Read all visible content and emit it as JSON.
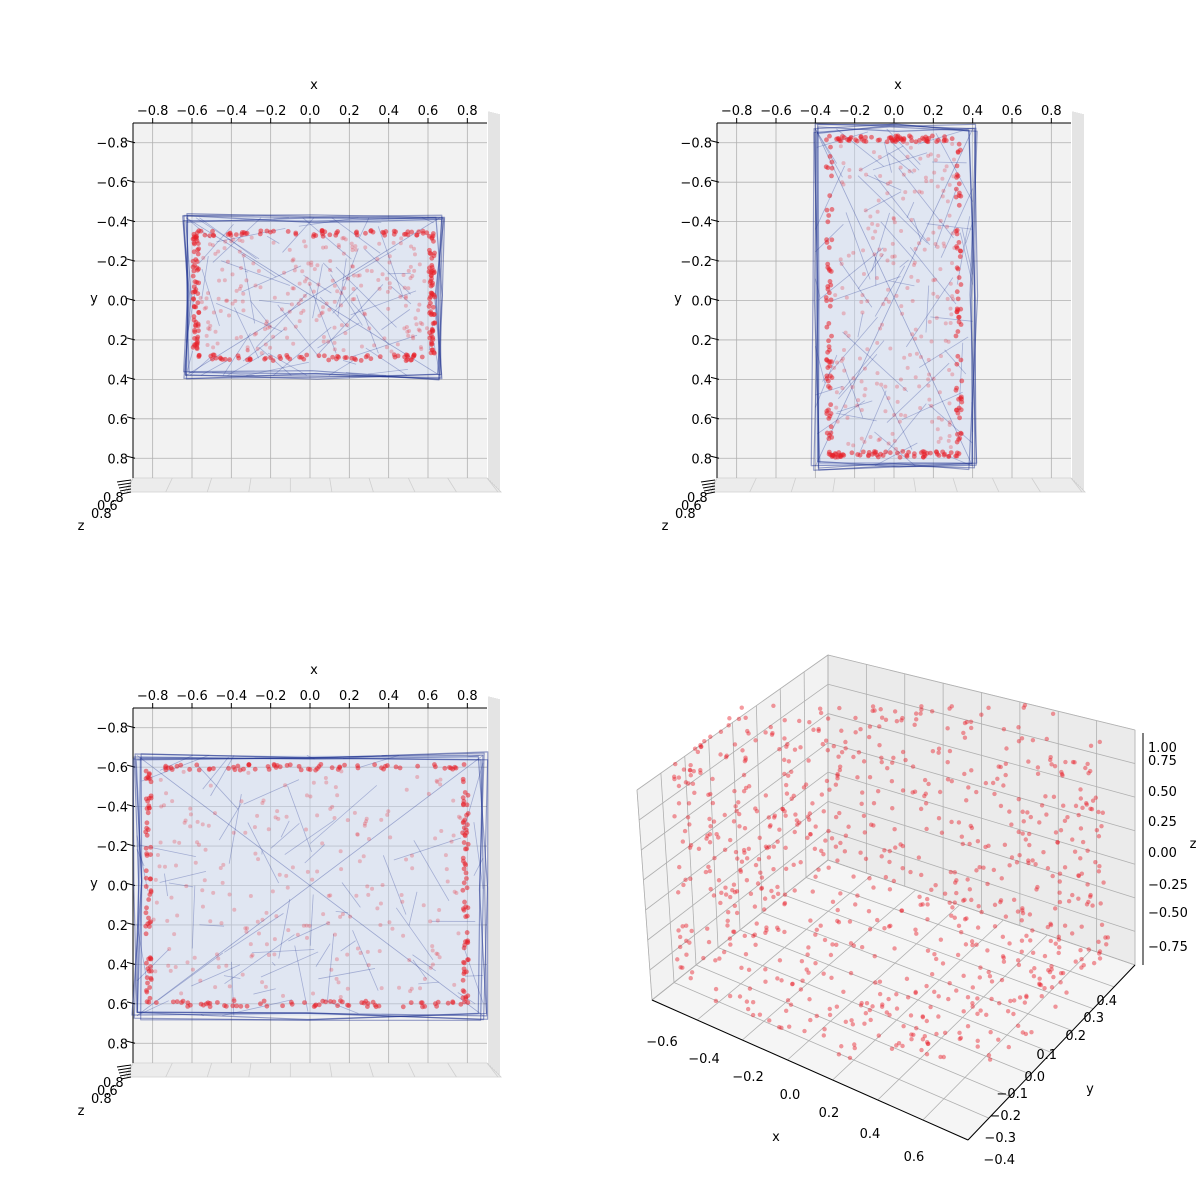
{
  "figure": {
    "background": "#ffffff",
    "pane_color": "#f2f2f2",
    "grid_color": "#b0b0b0",
    "point_color": "#e8202a",
    "mesh_color": "#1a2f8f",
    "mesh_fill": "#c9d8f2"
  },
  "chart_data": [
    {
      "type": "scatter",
      "projection": "3d-top",
      "xlabel": "x",
      "ylabel": "y",
      "zlabel": "z",
      "xticks": [
        "−0.8",
        "−0.6",
        "−0.4",
        "−0.2",
        "0.0",
        "0.2",
        "0.4",
        "0.6",
        "0.8"
      ],
      "yticks": [
        "−0.8",
        "−0.6",
        "−0.4",
        "−0.2",
        "0.0",
        "0.2",
        "0.4",
        "0.6",
        "0.8"
      ],
      "xlim": [
        -0.9,
        0.9
      ],
      "ylim": [
        -0.9,
        0.9
      ],
      "grid": true,
      "box": {
        "x": [
          -0.63,
          0.66
        ],
        "y": [
          -0.42,
          0.38
        ]
      },
      "rim": {
        "x": [
          -0.58,
          0.62
        ],
        "y": [
          -0.34,
          0.29
        ]
      }
    },
    {
      "type": "scatter",
      "projection": "3d-top",
      "xlabel": "x",
      "ylabel": "y",
      "zlabel": "z",
      "xticks": [
        "−0.8",
        "−0.6",
        "−0.4",
        "−0.2",
        "0.0",
        "0.2",
        "0.4",
        "0.6",
        "0.8"
      ],
      "yticks": [
        "−0.8",
        "−0.6",
        "−0.4",
        "−0.2",
        "0.0",
        "0.2",
        "0.4",
        "0.6",
        "0.8"
      ],
      "xlim": [
        -0.9,
        0.9
      ],
      "ylim": [
        -0.9,
        0.9
      ],
      "grid": true,
      "box": {
        "x": [
          -0.4,
          0.4
        ],
        "y": [
          -0.87,
          0.84
        ]
      },
      "rim": {
        "x": [
          -0.33,
          0.33
        ],
        "y": [
          -0.82,
          0.78
        ]
      }
    },
    {
      "type": "scatter",
      "projection": "3d-top",
      "xlabel": "x",
      "ylabel": "y",
      "zlabel": "z",
      "xticks": [
        "−0.8",
        "−0.6",
        "−0.4",
        "−0.2",
        "0.0",
        "0.2",
        "0.4",
        "0.6",
        "0.8"
      ],
      "yticks": [
        "−0.8",
        "−0.6",
        "−0.4",
        "−0.2",
        "0.0",
        "0.2",
        "0.4",
        "0.6",
        "0.8"
      ],
      "xlim": [
        -0.9,
        0.9
      ],
      "ylim": [
        -0.9,
        0.9
      ],
      "grid": true,
      "box": {
        "x": [
          -0.88,
          0.88
        ],
        "y": [
          -0.66,
          0.66
        ]
      },
      "rim": {
        "x": [
          -0.82,
          0.79
        ],
        "y": [
          -0.6,
          0.6
        ]
      }
    },
    {
      "type": "scatter",
      "projection": "3d-perspective",
      "xlabel": "x",
      "ylabel": "y",
      "zlabel": "z",
      "xticks": [
        "−0.6",
        "−0.4",
        "−0.2",
        "0.0",
        "0.2",
        "0.4",
        "0.6"
      ],
      "yticks": [
        "−0.4",
        "−0.3",
        "−0.2",
        "−0.1",
        "0.0",
        "0.1",
        "0.2",
        "0.3",
        "0.4"
      ],
      "zticks": [
        "−0.75",
        "−0.50",
        "−0.25",
        "0.00",
        "0.25",
        "0.50",
        "0.75",
        "1.00"
      ],
      "xlim": [
        -0.7,
        0.7
      ],
      "ylim": [
        -0.4,
        0.4
      ],
      "zlim": [
        -0.9,
        0.9
      ],
      "grid": true
    }
  ]
}
